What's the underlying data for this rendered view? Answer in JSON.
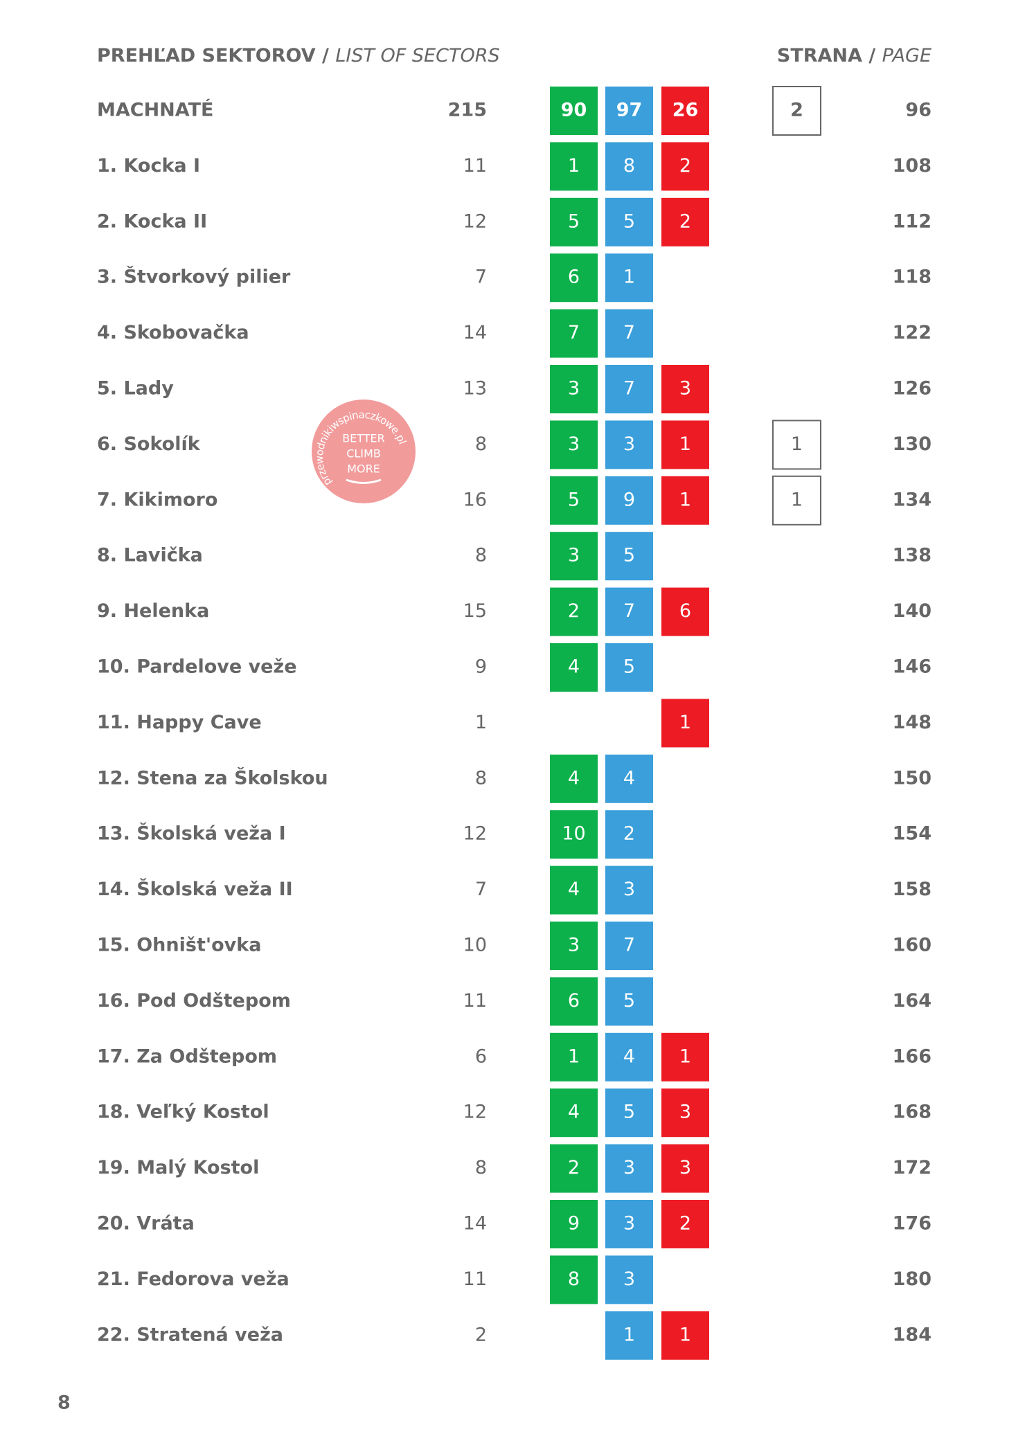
{
  "header": {
    "left": {
      "title": "PREHĽAD SEKTOROV",
      "separator": "/",
      "subtitle": "LIST OF SECTORS"
    },
    "right": {
      "title": "STRANA",
      "separator": "/",
      "subtitle": "PAGE"
    }
  },
  "table": {
    "rows": [
      {
        "name": "MACHNATÉ",
        "count": 215,
        "green": 90,
        "blue": 97,
        "red": 26,
        "box": 2,
        "page": 96
      },
      {
        "name": "1. Kocka I",
        "count": 11,
        "green": 1,
        "blue": 8,
        "red": 2,
        "box": null,
        "page": 108
      },
      {
        "name": "2. Kocka II",
        "count": 12,
        "green": 5,
        "blue": 5,
        "red": 2,
        "box": null,
        "page": 112
      },
      {
        "name": "3. Štvorkový pilier",
        "count": 7,
        "green": 6,
        "blue": 1,
        "red": null,
        "box": null,
        "page": 118
      },
      {
        "name": "4. Skobovačka",
        "count": 14,
        "green": 7,
        "blue": 7,
        "red": null,
        "box": null,
        "page": 122
      },
      {
        "name": "5. Lady",
        "count": 13,
        "green": 3,
        "blue": 7,
        "red": 3,
        "box": null,
        "page": 126
      },
      {
        "name": "6. Sokolík",
        "count": 8,
        "green": 3,
        "blue": 3,
        "red": 1,
        "box": 1,
        "page": 130
      },
      {
        "name": "7. Kikimoro",
        "count": 16,
        "green": 5,
        "blue": 9,
        "red": 1,
        "box": 1,
        "page": 134
      },
      {
        "name": "8. Lavička",
        "count": 8,
        "green": 3,
        "blue": 5,
        "red": null,
        "box": null,
        "page": 138
      },
      {
        "name": "9. Helenka",
        "count": 15,
        "green": 2,
        "blue": 7,
        "red": 6,
        "box": null,
        "page": 140
      },
      {
        "name": "10. Pardelove veže",
        "count": 9,
        "green": 4,
        "blue": 5,
        "red": null,
        "box": null,
        "page": 146
      },
      {
        "name": "11. Happy Cave",
        "count": 1,
        "green": null,
        "blue": null,
        "red": 1,
        "box": null,
        "page": 148
      },
      {
        "name": "12. Stena za Školskou",
        "count": 8,
        "green": 4,
        "blue": 4,
        "red": null,
        "box": null,
        "page": 150
      },
      {
        "name": "13. Školská veža I",
        "count": 12,
        "green": 10,
        "blue": 2,
        "red": null,
        "box": null,
        "page": 154
      },
      {
        "name": "14. Školská veža II",
        "count": 7,
        "green": 4,
        "blue": 3,
        "red": null,
        "box": null,
        "page": 158
      },
      {
        "name": "15. Ohništ'ovka",
        "count": 10,
        "green": 3,
        "blue": 7,
        "red": null,
        "box": null,
        "page": 160
      },
      {
        "name": "16. Pod Odštepom",
        "count": 11,
        "green": 6,
        "blue": 5,
        "red": null,
        "box": null,
        "page": 164
      },
      {
        "name": "17. Za Odštepom",
        "count": 6,
        "green": 1,
        "blue": 4,
        "red": 1,
        "box": null,
        "page": 166
      },
      {
        "name": "18. Veľký Kostol",
        "count": 12,
        "green": 4,
        "blue": 5,
        "red": 3,
        "box": null,
        "page": 168
      },
      {
        "name": "19. Malý Kostol",
        "count": 8,
        "green": 2,
        "blue": 3,
        "red": 3,
        "box": null,
        "page": 172
      },
      {
        "name": "20. Vráta",
        "count": 14,
        "green": 9,
        "blue": 3,
        "red": 2,
        "box": null,
        "page": 176
      },
      {
        "name": "21. Fedorova veža",
        "count": 11,
        "green": 8,
        "blue": 3,
        "red": null,
        "box": null,
        "page": 180
      },
      {
        "name": "22. Stratená veža",
        "count": 2,
        "green": null,
        "blue": 1,
        "red": 1,
        "box": null,
        "page": 184
      }
    ]
  },
  "stamp": {
    "url": "przewodnikiwspinaczkowe.pl",
    "lines": [
      "BETTER",
      "CLIMB",
      "MORE"
    ]
  },
  "footer": {
    "page_number": "8"
  }
}
